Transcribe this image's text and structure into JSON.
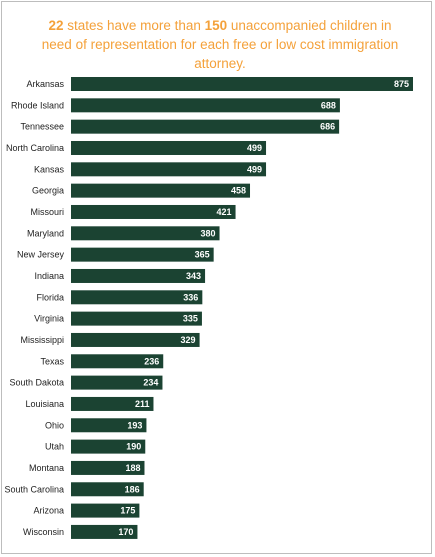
{
  "title": {
    "count": "22",
    "part1": " states have more than ",
    "threshold": "150",
    "part2": " unaccompanied children in need of representation for each free or low cost immigration attorney."
  },
  "colors": {
    "bar": "#1b4332",
    "title": "#f4a13a",
    "label": "#222222",
    "value_text": "#ffffff"
  },
  "chart_data": {
    "type": "bar",
    "orientation": "horizontal",
    "title": "22 states have more than 150 unaccompanied children in need of representation for each free or low cost immigration attorney.",
    "categories": [
      "Arkansas",
      "Rhode Island",
      "Tennessee",
      "North Carolina",
      "Kansas",
      "Georgia",
      "Missouri",
      "Maryland",
      "New Jersey",
      "Indiana",
      "Florida",
      "Virginia",
      "Mississippi",
      "Texas",
      "South Dakota",
      "Louisiana",
      "Ohio",
      "Utah",
      "Montana",
      "South Carolina",
      "Arizona",
      "Wisconsin"
    ],
    "values": [
      875,
      688,
      686,
      499,
      499,
      458,
      421,
      380,
      365,
      343,
      336,
      335,
      329,
      236,
      234,
      211,
      193,
      190,
      188,
      186,
      175,
      170
    ],
    "xlim": [
      0,
      875
    ],
    "grid": false,
    "data_labels": true
  }
}
